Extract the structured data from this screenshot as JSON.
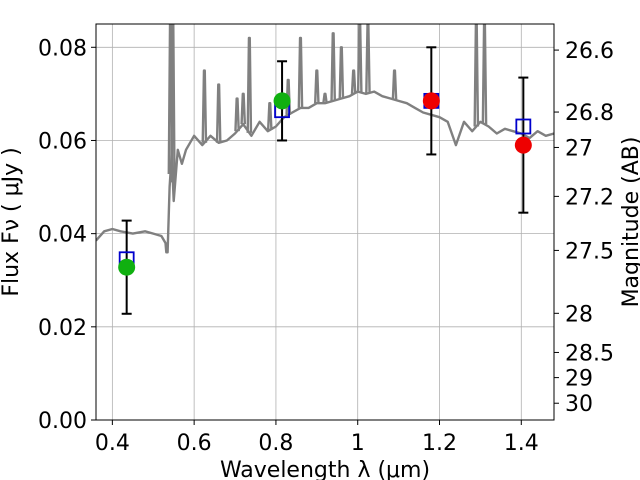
{
  "chart_data": {
    "type": "line",
    "xlabel": "Wavelength  λ (μm)",
    "ylabel": "Flux  Fν  ( μJy )",
    "y2label": "Magnitude (AB)",
    "xlim": [
      0.36,
      1.48
    ],
    "ylim": [
      0.0,
      0.085
    ],
    "grid": true,
    "x_ticks": [
      0.4,
      0.6,
      0.8,
      1.0,
      1.2,
      1.4
    ],
    "x_tick_labels": [
      "0.4",
      "0.6",
      "0.8",
      "1",
      "1.2",
      "1.4"
    ],
    "y_ticks": [
      0.0,
      0.02,
      0.04,
      0.06,
      0.08
    ],
    "y_tick_labels": [
      "0.00",
      "0.02",
      "0.04",
      "0.06",
      "0.08"
    ],
    "y2_ticks": [
      {
        "label": "26.6",
        "flux": 0.0794
      },
      {
        "label": "26.8",
        "flux": 0.0661
      },
      {
        "label": "27",
        "flux": 0.0585
      },
      {
        "label": "27.2",
        "flux": 0.048
      },
      {
        "label": "27.5",
        "flux": 0.0364
      },
      {
        "label": "28",
        "flux": 0.0229
      },
      {
        "label": "28.5",
        "flux": 0.0145
      },
      {
        "label": "29",
        "flux": 0.0091
      },
      {
        "label": "30",
        "flux": 0.0036
      }
    ],
    "spectrum": {
      "color": "#808080",
      "x": [
        0.36,
        0.38,
        0.4,
        0.42,
        0.45,
        0.48,
        0.5,
        0.52,
        0.53,
        0.532,
        0.535,
        0.54,
        0.545,
        0.55,
        0.56,
        0.57,
        0.58,
        0.6,
        0.62,
        0.64,
        0.66,
        0.68,
        0.7,
        0.72,
        0.74,
        0.76,
        0.78,
        0.8,
        0.82,
        0.84,
        0.86,
        0.88,
        0.9,
        0.92,
        0.94,
        0.96,
        0.98,
        1.0,
        1.02,
        1.04,
        1.06,
        1.08,
        1.1,
        1.12,
        1.14,
        1.16,
        1.18,
        1.2,
        1.22,
        1.24,
        1.26,
        1.28,
        1.3,
        1.32,
        1.34,
        1.36,
        1.38,
        1.4,
        1.42,
        1.44,
        1.46,
        1.48
      ],
      "y": [
        0.0385,
        0.0405,
        0.041,
        0.0405,
        0.04,
        0.0405,
        0.04,
        0.0395,
        0.038,
        0.036,
        0.036,
        0.05,
        0.057,
        0.047,
        0.058,
        0.055,
        0.058,
        0.061,
        0.059,
        0.061,
        0.0595,
        0.06,
        0.0615,
        0.0635,
        0.061,
        0.064,
        0.062,
        0.063,
        0.065,
        0.066,
        0.067,
        0.067,
        0.068,
        0.068,
        0.0685,
        0.069,
        0.0695,
        0.0705,
        0.07,
        0.0705,
        0.0695,
        0.069,
        0.0685,
        0.068,
        0.067,
        0.066,
        0.0655,
        0.065,
        0.064,
        0.059,
        0.064,
        0.062,
        0.064,
        0.063,
        0.0615,
        0.0625,
        0.062,
        0.0615,
        0.0605,
        0.062,
        0.061,
        0.0615
      ]
    },
    "emission_lines": [
      {
        "x": 0.542,
        "peak": 0.085
      },
      {
        "x": 0.548,
        "peak": 0.085
      },
      {
        "x": 0.625,
        "peak": 0.075
      },
      {
        "x": 0.66,
        "peak": 0.072
      },
      {
        "x": 0.705,
        "peak": 0.069
      },
      {
        "x": 0.72,
        "peak": 0.07
      },
      {
        "x": 0.735,
        "peak": 0.082
      },
      {
        "x": 0.785,
        "peak": 0.068
      },
      {
        "x": 0.83,
        "peak": 0.073
      },
      {
        "x": 0.86,
        "peak": 0.082
      },
      {
        "x": 0.9,
        "peak": 0.075
      },
      {
        "x": 0.92,
        "peak": 0.07
      },
      {
        "x": 0.94,
        "peak": 0.083
      },
      {
        "x": 0.96,
        "peak": 0.08
      },
      {
        "x": 0.99,
        "peak": 0.075
      },
      {
        "x": 1.005,
        "peak": 0.085
      },
      {
        "x": 1.025,
        "peak": 0.085
      },
      {
        "x": 1.09,
        "peak": 0.075
      },
      {
        "x": 1.29,
        "peak": 0.085
      },
      {
        "x": 1.31,
        "peak": 0.085
      }
    ],
    "model_points": {
      "marker": "open-square",
      "color": "#0000cc",
      "x": [
        0.435,
        0.815,
        1.18,
        1.405
      ],
      "y": [
        0.0345,
        0.0665,
        0.0685,
        0.063
      ]
    },
    "observations": [
      {
        "x": 0.435,
        "y": 0.0328,
        "ylow": 0.0228,
        "yhigh": 0.0428,
        "color": "#10b010"
      },
      {
        "x": 0.815,
        "y": 0.0685,
        "ylow": 0.06,
        "yhigh": 0.077,
        "color": "#10b010"
      },
      {
        "x": 1.18,
        "y": 0.0685,
        "ylow": 0.057,
        "yhigh": 0.08,
        "color": "#ee0000"
      },
      {
        "x": 1.405,
        "y": 0.059,
        "ylow": 0.0445,
        "yhigh": 0.0735,
        "color": "#ee0000"
      }
    ]
  }
}
